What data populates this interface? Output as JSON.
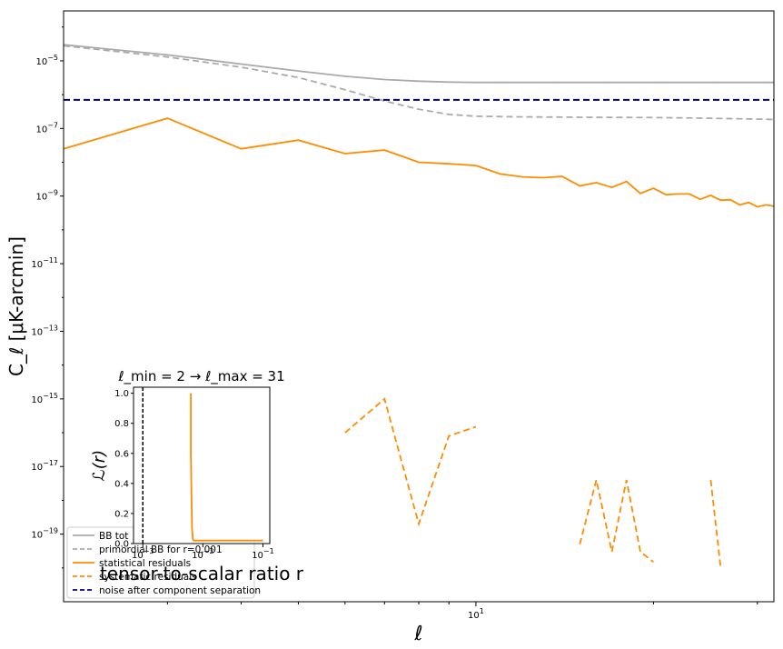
{
  "chart_data": [
    {
      "type": "line",
      "title": "",
      "xlabel": "ℓ",
      "ylabel": "C_ℓ [μK-arcmin]",
      "xscale": "log",
      "yscale": "log",
      "xlim": [
        2,
        32
      ],
      "ylim": [
        1e-21,
        0.0003
      ],
      "x_ticks": [
        {
          "value": 10,
          "base": "10",
          "exp": "1"
        }
      ],
      "y_ticks": [
        {
          "value": 1e-05,
          "base": "10",
          "exp": "−5"
        },
        {
          "value": 1e-07,
          "base": "10",
          "exp": "−7"
        },
        {
          "value": 1e-09,
          "base": "10",
          "exp": "−9"
        },
        {
          "value": 1e-11,
          "base": "10",
          "exp": "−11"
        },
        {
          "value": 1e-13,
          "base": "10",
          "exp": "−13"
        },
        {
          "value": 1e-15,
          "base": "10",
          "exp": "−15"
        },
        {
          "value": 1e-17,
          "base": "10",
          "exp": "−17"
        },
        {
          "value": 1e-19,
          "base": "10",
          "exp": "−19"
        }
      ],
      "legend_position": "lower-left",
      "series": [
        {
          "name": "BB tot",
          "color": "#aaaaaa",
          "style": "solid",
          "x": [
            2,
            3,
            4,
            5,
            6,
            7,
            8,
            9,
            10,
            12,
            15,
            20,
            25,
            32
          ],
          "y": [
            3e-05,
            1.5e-05,
            8e-06,
            5e-06,
            3.5e-06,
            2.8e-06,
            2.5e-06,
            2.35e-06,
            2.3e-06,
            2.3e-06,
            2.3e-06,
            2.3e-06,
            2.3e-06,
            2.3e-06
          ]
        },
        {
          "name": "primordial BB for r=0.001",
          "color": "#aaaaaa",
          "style": "dashed",
          "x": [
            2,
            3,
            4,
            5,
            6,
            7,
            8,
            9,
            10,
            12,
            15,
            20,
            25,
            32
          ],
          "y": [
            2.8e-05,
            1.3e-05,
            6.5e-06,
            3.2e-06,
            1.4e-06,
            6.5e-07,
            3.7e-07,
            2.6e-07,
            2.3e-07,
            2.2e-07,
            2.15e-07,
            2.1e-07,
            2e-07,
            1.85e-07
          ]
        },
        {
          "name": "statistical residuals",
          "color": "#ff8c00",
          "style": "solid",
          "x": [
            2,
            3,
            4,
            5,
            6,
            7,
            8,
            9,
            10,
            11,
            12,
            13,
            14,
            15,
            16,
            17,
            18,
            19,
            20,
            21,
            22,
            23,
            24,
            25,
            26,
            27,
            28,
            29,
            30,
            31,
            32
          ],
          "y": [
            2.5e-08,
            2e-07,
            2.5e-08,
            4.5e-08,
            1.8e-08,
            2.3e-08,
            1e-08,
            9e-09,
            8e-09,
            4.5e-09,
            3.7e-09,
            3.5e-09,
            3.8e-09,
            2e-09,
            2.5e-09,
            1.8e-09,
            2.7e-09,
            1.2e-09,
            1.7e-09,
            1.1e-09,
            1.15e-09,
            1.15e-09,
            8e-10,
            1.05e-09,
            7.5e-10,
            7.8e-10,
            5.5e-10,
            6.5e-10,
            4.8e-10,
            5.5e-10,
            5e-10
          ]
        },
        {
          "name": "systematic residuals",
          "color": "#ff8c00",
          "style": "dashed",
          "x": [
            2,
            3,
            4,
            5,
            6,
            7,
            8,
            9,
            10,
            11,
            12,
            13,
            14,
            15,
            16,
            17,
            18,
            19,
            20,
            21,
            22,
            23,
            24,
            25,
            26,
            27
          ],
          "y": [
            null,
            null,
            null,
            null,
            1e-16,
            1e-15,
            2e-19,
            8e-17,
            1.5e-16,
            null,
            null,
            null,
            null,
            5e-20,
            4e-18,
            3e-20,
            4e-18,
            3e-20,
            1.5e-20,
            null,
            null,
            null,
            null,
            4e-18,
            1e-20,
            null
          ]
        },
        {
          "name": "noise after component separation",
          "color": "#000080",
          "style": "dashed",
          "x": [
            2,
            32
          ],
          "y": [
            7e-07,
            7e-07
          ]
        }
      ]
    },
    {
      "type": "line",
      "title": "ℓ_min = 2 → ℓ_max = 31",
      "xlabel": "tensor-to-scalar ratio r",
      "ylabel": "ℒ(r)",
      "xscale": "log",
      "xlim": [
        0.0007,
        0.13
      ],
      "ylim": [
        0,
        1.04
      ],
      "x_ticks": [
        {
          "value": 0.001,
          "base": "10",
          "exp": "−3"
        },
        {
          "value": 0.01,
          "base": "10",
          "exp": "−2"
        },
        {
          "value": 0.1,
          "base": "10",
          "exp": "−1"
        }
      ],
      "y_ticks": [
        "0.0",
        "0.2",
        "0.4",
        "0.6",
        "0.8",
        "1.0"
      ],
      "vline_r": 0.001,
      "series": [
        {
          "name": "",
          "color": "#ff8c00",
          "x": [
            0.0063,
            0.0063,
            0.0066,
            0.0068,
            0.007,
            0.01,
            0.05,
            0.1
          ],
          "y": [
            1.0,
            0.6,
            0.1,
            0.03,
            0.02,
            0.02,
            0.02,
            0.02
          ]
        }
      ]
    }
  ]
}
